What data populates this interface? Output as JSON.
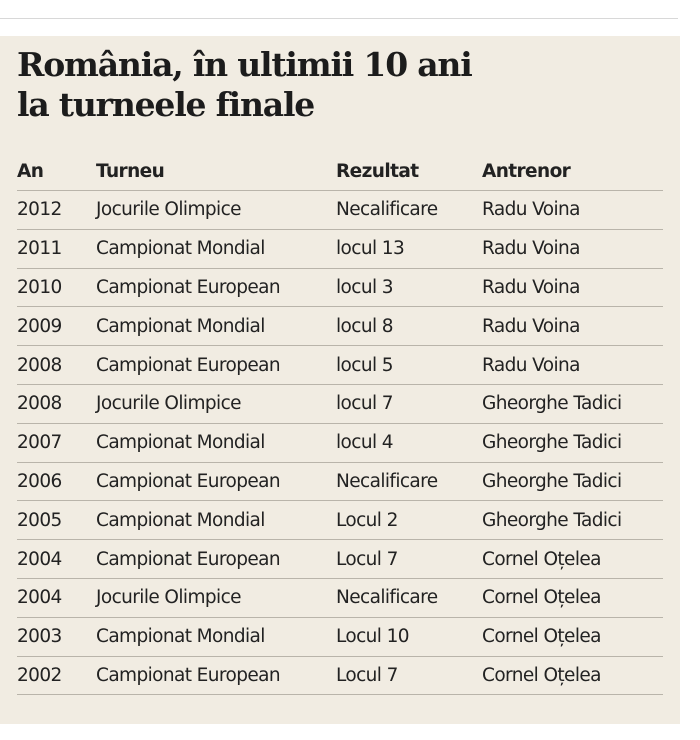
{
  "title": {
    "line1": "România, în ultimii 10 ani",
    "line2": "la turneele finale"
  },
  "columns": [
    "An",
    "Turneu",
    "Rezultat",
    "Antrenor"
  ],
  "rows": [
    [
      "2012",
      "Jocurile Olimpice",
      "Necalificare",
      "Radu Voina"
    ],
    [
      "2011",
      "Campionat Mondial",
      "locul 13",
      "Radu Voina"
    ],
    [
      "2010",
      "Campionat European",
      "locul 3",
      "Radu Voina"
    ],
    [
      "2009",
      "Campionat Mondial",
      "locul 8",
      "Radu Voina"
    ],
    [
      "2008",
      "Campionat European",
      "locul 5",
      "Radu Voina"
    ],
    [
      "2008",
      "Jocurile Olimpice",
      "locul 7",
      "Gheorghe Tadici"
    ],
    [
      "2007",
      "Campionat Mondial",
      "locul 4",
      "Gheorghe Tadici"
    ],
    [
      "2006",
      "Campionat European",
      "Necalificare",
      "Gheorghe Tadici"
    ],
    [
      "2005",
      "Campionat Mondial",
      "Locul 2",
      "Gheorghe Tadici"
    ],
    [
      "2004",
      "Campionat European",
      "Locul 7",
      "Cornel Oțelea"
    ],
    [
      "2004",
      "Jocurile Olimpice",
      "Necalificare",
      "Cornel Oțelea"
    ],
    [
      "2003",
      "Campionat Mondial",
      "Locul 10",
      "Cornel Oțelea"
    ],
    [
      "2002",
      "Campionat European",
      "Locul 7",
      "Cornel Oțelea"
    ]
  ]
}
